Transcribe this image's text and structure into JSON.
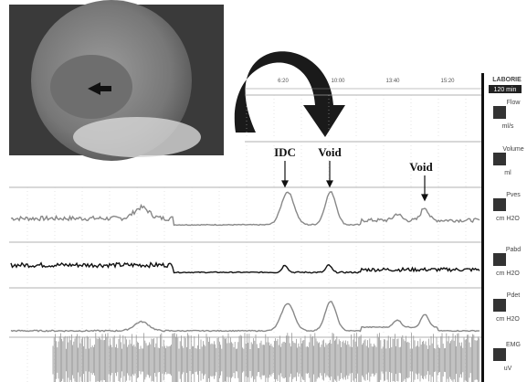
{
  "header": {
    "brand": "LABORIE",
    "scale": "120 min"
  },
  "time_ticks": [
    "6:20",
    "10:00",
    "13:40",
    "15:20"
  ],
  "channels": [
    {
      "name": "Flow",
      "unit": "ml/s"
    },
    {
      "name": "Volume",
      "unit": "ml"
    },
    {
      "name": "Pves",
      "unit": "cm H2O"
    },
    {
      "name": "Pabd",
      "unit": "cm H2O"
    },
    {
      "name": "Pdet",
      "unit": "cm H2O"
    },
    {
      "name": "EMG",
      "unit": "uV"
    }
  ],
  "annotations": [
    "IDC",
    "Void",
    "Void"
  ]
}
